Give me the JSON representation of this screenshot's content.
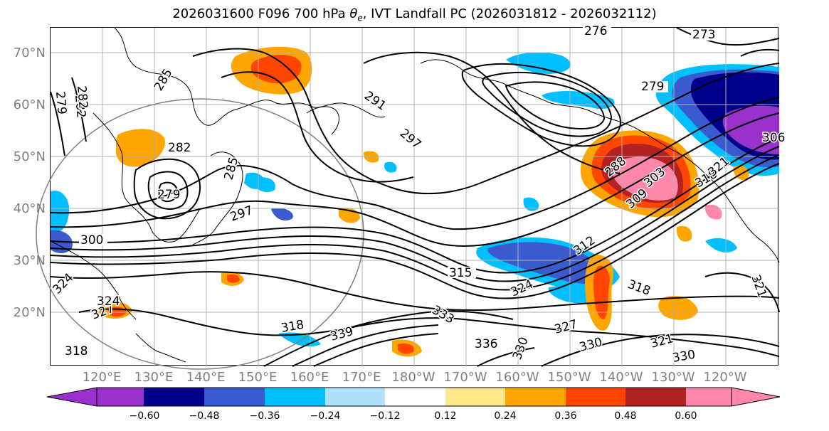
{
  "title": {
    "prefix": "2026031600 F096 700 hPa ",
    "theta": "θ",
    "theta_sub": "e",
    "suffix": ", IVT Landfall PC (2026031812 - 2026032112)"
  },
  "map": {
    "lat_labels": [
      "70°N",
      "60°N",
      "50°N",
      "40°N",
      "30°N",
      "20°N"
    ],
    "lon_labels": [
      "120°E",
      "130°E",
      "140°E",
      "150°E",
      "160°E",
      "170°E",
      "180°W",
      "170°W",
      "160°W",
      "150°W",
      "140°W",
      "130°W",
      "120°W"
    ],
    "contour_labels": [
      "276",
      "273",
      "279",
      "291",
      "297",
      "282",
      "285",
      "279",
      "282",
      "297",
      "300",
      "288",
      "303",
      "309",
      "312",
      "318",
      "315",
      "324",
      "318",
      "327",
      "330",
      "321",
      "330",
      "336",
      "339",
      "318",
      "321",
      "324",
      "327",
      "333",
      "330",
      "285",
      "279",
      "282",
      "306",
      "321",
      "318",
      "324"
    ],
    "colors": {
      "neg_060": "#9932cc",
      "neg_048": "#00008b",
      "neg_036": "#3a5bcd",
      "neg_024": "#00bfff",
      "neg_012": "#b0e0fa",
      "zero": "#ffffff",
      "pos_012": "#ffe98a",
      "pos_024": "#ffa500",
      "pos_036": "#ff4500",
      "pos_048": "#b22222",
      "pos_060": "#ff88aa"
    }
  },
  "colorbar": {
    "tick_labels": [
      "−0.60",
      "−0.48",
      "−0.36",
      "−0.24",
      "−0.12",
      "0.12",
      "0.24",
      "0.36",
      "0.48",
      "0.60"
    ],
    "segment_colors": [
      "#9932cc",
      "#00008b",
      "#3a5bcd",
      "#00bfff",
      "#b0e0fa",
      "#ffffff",
      "#ffe98a",
      "#ffa500",
      "#ff4500",
      "#b22222",
      "#ff88aa"
    ]
  }
}
